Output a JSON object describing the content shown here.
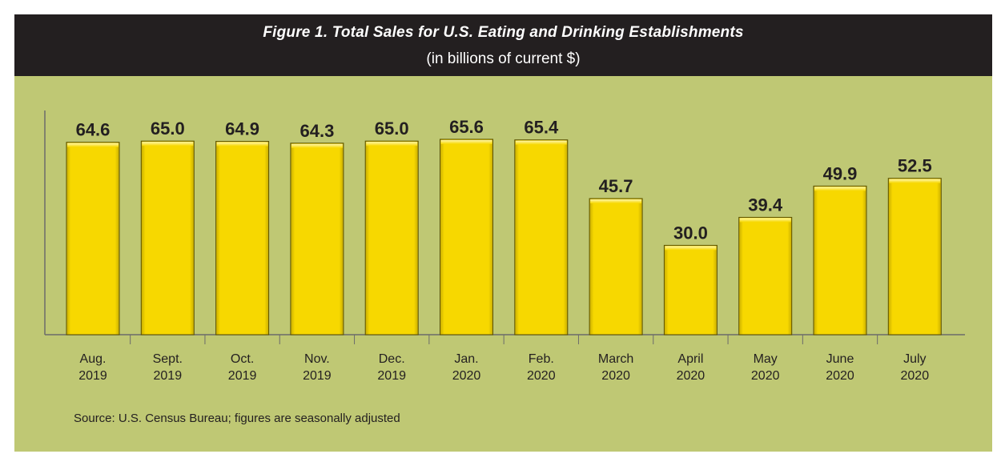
{
  "title": "Figure 1. Total Sales for U.S. Eating and Drinking Establishments",
  "subtitle": "(in billions of current $)",
  "source": "Source: U.S. Census Bureau; figures are seasonally adjusted",
  "colors": {
    "background": "#bfc874",
    "header": "#231f20",
    "bar": "#f7d800",
    "bar_edge": "#5a5000",
    "axis": "#6b6b6b",
    "text": "#231f20"
  },
  "chart_data": {
    "type": "bar",
    "title": "Figure 1. Total Sales for U.S. Eating and Drinking Establishments",
    "subtitle": "(in billions of current $)",
    "xlabel": "",
    "ylabel": "in billions of current $",
    "ylim": [
      0,
      70
    ],
    "grid": false,
    "categories": [
      [
        "Aug.",
        "2019"
      ],
      [
        "Sept.",
        "2019"
      ],
      [
        "Oct.",
        "2019"
      ],
      [
        "Nov.",
        "2019"
      ],
      [
        "Dec.",
        "2019"
      ],
      [
        "Jan.",
        "2020"
      ],
      [
        "Feb.",
        "2020"
      ],
      [
        "March",
        "2020"
      ],
      [
        "April",
        "2020"
      ],
      [
        "May",
        "2020"
      ],
      [
        "June",
        "2020"
      ],
      [
        "July",
        "2020"
      ]
    ],
    "values": [
      64.6,
      65.0,
      64.9,
      64.3,
      65.0,
      65.6,
      65.4,
      45.7,
      30.0,
      39.4,
      49.9,
      52.5
    ],
    "labels": [
      "64.6",
      "65.0",
      "64.9",
      "64.3",
      "65.0",
      "65.6",
      "65.4",
      "45.7",
      "30.0",
      "39.4",
      "49.9",
      "52.5"
    ]
  }
}
